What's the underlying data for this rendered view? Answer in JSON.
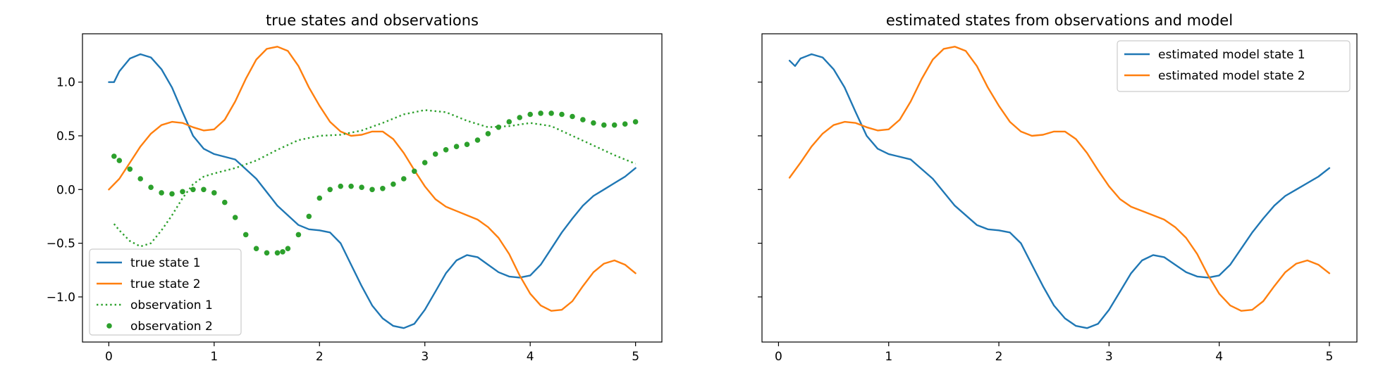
{
  "chart_data": [
    {
      "type": "line",
      "title": "true states and observations",
      "xlabel": "",
      "ylabel": "",
      "xlim": [
        -0.25,
        5.25
      ],
      "ylim": [
        -1.42,
        1.45
      ],
      "xticks": [
        0,
        1,
        2,
        3,
        4,
        5
      ],
      "yticks": [
        -1.0,
        -0.5,
        0.0,
        0.5,
        1.0
      ],
      "ytick_labels": [
        "−1.0",
        "−0.5",
        "0.0",
        "0.5",
        "1.0"
      ],
      "grid": false,
      "legend_position": "lower-left",
      "series": [
        {
          "name": "true state 1",
          "style": "solid",
          "color": "#1f77b4",
          "x": [
            0.0,
            0.05,
            0.1,
            0.2,
            0.3,
            0.4,
            0.5,
            0.6,
            0.7,
            0.8,
            0.9,
            1.0,
            1.2,
            1.4,
            1.6,
            1.8,
            1.9,
            2.0,
            2.1,
            2.2,
            2.3,
            2.4,
            2.5,
            2.6,
            2.7,
            2.8,
            2.9,
            3.0,
            3.1,
            3.2,
            3.3,
            3.4,
            3.5,
            3.6,
            3.7,
            3.8,
            3.9,
            4.0,
            4.1,
            4.2,
            4.3,
            4.4,
            4.5,
            4.6,
            4.7,
            4.8,
            4.9,
            5.0
          ],
          "y": [
            1.0,
            1.0,
            1.1,
            1.22,
            1.26,
            1.23,
            1.12,
            0.95,
            0.72,
            0.5,
            0.38,
            0.33,
            0.28,
            0.1,
            -0.15,
            -0.33,
            -0.37,
            -0.38,
            -0.4,
            -0.5,
            -0.7,
            -0.9,
            -1.08,
            -1.2,
            -1.27,
            -1.29,
            -1.25,
            -1.12,
            -0.95,
            -0.78,
            -0.66,
            -0.61,
            -0.63,
            -0.7,
            -0.77,
            -0.81,
            -0.82,
            -0.8,
            -0.7,
            -0.55,
            -0.4,
            -0.27,
            -0.15,
            -0.06,
            0.0,
            0.06,
            0.12,
            0.2
          ]
        },
        {
          "name": "true state 2",
          "style": "solid",
          "color": "#ff7f0e",
          "x": [
            0.0,
            0.1,
            0.2,
            0.3,
            0.4,
            0.5,
            0.6,
            0.7,
            0.8,
            0.9,
            1.0,
            1.1,
            1.2,
            1.3,
            1.4,
            1.5,
            1.6,
            1.7,
            1.8,
            1.9,
            2.0,
            2.1,
            2.2,
            2.3,
            2.4,
            2.5,
            2.6,
            2.7,
            2.8,
            2.9,
            3.0,
            3.1,
            3.2,
            3.3,
            3.4,
            3.5,
            3.6,
            3.7,
            3.8,
            3.9,
            4.0,
            4.1,
            4.2,
            4.3,
            4.4,
            4.5,
            4.6,
            4.7,
            4.8,
            4.9,
            5.0
          ],
          "y": [
            0.0,
            0.1,
            0.25,
            0.4,
            0.52,
            0.6,
            0.63,
            0.62,
            0.58,
            0.55,
            0.56,
            0.65,
            0.82,
            1.03,
            1.21,
            1.31,
            1.33,
            1.29,
            1.15,
            0.95,
            0.78,
            0.63,
            0.54,
            0.5,
            0.51,
            0.54,
            0.54,
            0.47,
            0.34,
            0.18,
            0.03,
            -0.09,
            -0.16,
            -0.2,
            -0.24,
            -0.28,
            -0.35,
            -0.45,
            -0.6,
            -0.8,
            -0.97,
            -1.08,
            -1.13,
            -1.12,
            -1.04,
            -0.9,
            -0.77,
            -0.69,
            -0.66,
            -0.7,
            -0.78
          ]
        },
        {
          "name": "observation 1",
          "style": "dotted",
          "color": "#2ca02c",
          "x": [
            0.05,
            0.1,
            0.2,
            0.3,
            0.4,
            0.5,
            0.6,
            0.7,
            0.8,
            0.9,
            1.0,
            1.2,
            1.4,
            1.6,
            1.8,
            2.0,
            2.2,
            2.4,
            2.6,
            2.8,
            3.0,
            3.2,
            3.4,
            3.6,
            3.8,
            4.0,
            4.2,
            4.4,
            4.6,
            4.8,
            5.0
          ],
          "y": [
            -0.32,
            -0.38,
            -0.48,
            -0.53,
            -0.5,
            -0.38,
            -0.24,
            -0.08,
            0.05,
            0.12,
            0.15,
            0.2,
            0.27,
            0.37,
            0.46,
            0.5,
            0.51,
            0.55,
            0.62,
            0.7,
            0.74,
            0.72,
            0.64,
            0.58,
            0.59,
            0.62,
            0.59,
            0.5,
            0.41,
            0.32,
            0.24
          ]
        },
        {
          "name": "observation 2",
          "style": "markers",
          "color": "#2ca02c",
          "x": [
            0.05,
            0.1,
            0.2,
            0.3,
            0.4,
            0.5,
            0.6,
            0.7,
            0.8,
            0.9,
            1.0,
            1.1,
            1.2,
            1.3,
            1.4,
            1.5,
            1.6,
            1.65,
            1.7,
            1.8,
            1.9,
            2.0,
            2.1,
            2.2,
            2.3,
            2.4,
            2.5,
            2.6,
            2.7,
            2.8,
            2.9,
            3.0,
            3.1,
            3.2,
            3.3,
            3.4,
            3.5,
            3.6,
            3.7,
            3.8,
            3.9,
            4.0,
            4.1,
            4.2,
            4.3,
            4.4,
            4.5,
            4.6,
            4.7,
            4.8,
            4.9,
            5.0
          ],
          "y": [
            0.31,
            0.27,
            0.19,
            0.1,
            0.02,
            -0.03,
            -0.04,
            -0.02,
            0.0,
            0.0,
            -0.03,
            -0.12,
            -0.26,
            -0.42,
            -0.55,
            -0.59,
            -0.59,
            -0.58,
            -0.55,
            -0.42,
            -0.25,
            -0.08,
            0.0,
            0.03,
            0.03,
            0.02,
            0.0,
            0.01,
            0.05,
            0.1,
            0.17,
            0.25,
            0.33,
            0.37,
            0.4,
            0.42,
            0.46,
            0.52,
            0.58,
            0.63,
            0.67,
            0.7,
            0.71,
            0.71,
            0.7,
            0.68,
            0.65,
            0.62,
            0.6,
            0.6,
            0.61,
            0.63
          ]
        }
      ]
    },
    {
      "type": "line",
      "title": "estimated states from observations and model",
      "xlabel": "",
      "ylabel": "",
      "xlim": [
        -0.15,
        5.25
      ],
      "ylim": [
        -1.42,
        1.45
      ],
      "xticks": [
        0,
        1,
        2,
        3,
        4,
        5
      ],
      "yticks": [
        -1.0,
        -0.5,
        0.0,
        0.5,
        1.0
      ],
      "ytick_labels": [
        "",
        "",
        "",
        "",
        ""
      ],
      "grid": false,
      "legend_position": "upper-right",
      "series": [
        {
          "name": "estimated model state 1",
          "style": "solid",
          "color": "#1f77b4",
          "x": [
            0.1,
            0.15,
            0.2,
            0.3,
            0.4,
            0.5,
            0.6,
            0.7,
            0.8,
            0.9,
            1.0,
            1.2,
            1.4,
            1.6,
            1.8,
            1.9,
            2.0,
            2.1,
            2.2,
            2.3,
            2.4,
            2.5,
            2.6,
            2.7,
            2.8,
            2.9,
            3.0,
            3.1,
            3.2,
            3.3,
            3.4,
            3.5,
            3.6,
            3.7,
            3.8,
            3.9,
            4.0,
            4.1,
            4.2,
            4.3,
            4.4,
            4.5,
            4.6,
            4.7,
            4.8,
            4.9,
            5.0
          ],
          "y": [
            1.2,
            1.15,
            1.22,
            1.26,
            1.23,
            1.12,
            0.95,
            0.72,
            0.5,
            0.38,
            0.33,
            0.28,
            0.1,
            -0.15,
            -0.33,
            -0.37,
            -0.38,
            -0.4,
            -0.5,
            -0.7,
            -0.9,
            -1.08,
            -1.2,
            -1.27,
            -1.29,
            -1.25,
            -1.12,
            -0.95,
            -0.78,
            -0.66,
            -0.61,
            -0.63,
            -0.7,
            -0.77,
            -0.81,
            -0.82,
            -0.8,
            -0.7,
            -0.55,
            -0.4,
            -0.27,
            -0.15,
            -0.06,
            0.0,
            0.06,
            0.12,
            0.2
          ]
        },
        {
          "name": "estimated model state 2",
          "style": "solid",
          "color": "#ff7f0e",
          "x": [
            0.1,
            0.2,
            0.3,
            0.4,
            0.5,
            0.6,
            0.7,
            0.8,
            0.9,
            1.0,
            1.1,
            1.2,
            1.3,
            1.4,
            1.5,
            1.6,
            1.7,
            1.8,
            1.9,
            2.0,
            2.1,
            2.2,
            2.3,
            2.4,
            2.5,
            2.6,
            2.7,
            2.8,
            2.9,
            3.0,
            3.1,
            3.2,
            3.3,
            3.4,
            3.5,
            3.6,
            3.7,
            3.8,
            3.9,
            4.0,
            4.1,
            4.2,
            4.3,
            4.4,
            4.5,
            4.6,
            4.7,
            4.8,
            4.9,
            5.0
          ],
          "y": [
            0.11,
            0.25,
            0.4,
            0.52,
            0.6,
            0.63,
            0.62,
            0.58,
            0.55,
            0.56,
            0.65,
            0.82,
            1.03,
            1.21,
            1.31,
            1.33,
            1.29,
            1.15,
            0.95,
            0.78,
            0.63,
            0.54,
            0.5,
            0.51,
            0.54,
            0.54,
            0.47,
            0.34,
            0.18,
            0.03,
            -0.09,
            -0.16,
            -0.2,
            -0.24,
            -0.28,
            -0.35,
            -0.45,
            -0.6,
            -0.8,
            -0.97,
            -1.08,
            -1.13,
            -1.12,
            -1.04,
            -0.9,
            -0.77,
            -0.69,
            -0.66,
            -0.7,
            -0.78
          ]
        }
      ]
    }
  ]
}
